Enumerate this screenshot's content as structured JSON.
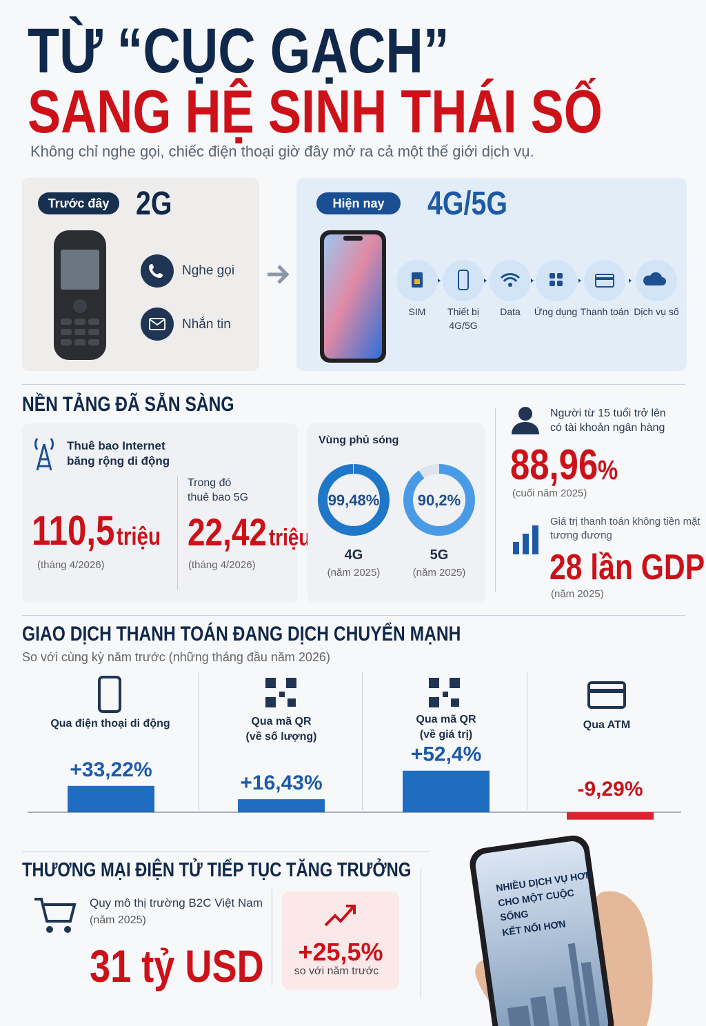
{
  "header": {
    "title_line1": "TỪ “CỤC GẠCH”",
    "title_line2": "SANG HỆ SINH THÁI SỐ",
    "subtitle": "Không chỉ nghe gọi, chiếc điện thoại giờ đây mở ra cả một thế giới dịch vụ."
  },
  "before": {
    "badge": "Trước đây",
    "tech": "2G",
    "features": [
      "Nghe gọi",
      "Nhắn tin"
    ]
  },
  "now": {
    "badge": "Hiện nay",
    "tech": "4G/5G",
    "steps": [
      "SIM",
      "Thiết bị\n4G/5G",
      "Data",
      "Ứng dụng",
      "Thanh toán",
      "Dịch vụ số"
    ]
  },
  "platform": {
    "title": "NỀN TẢNG ĐÃ SẴN SÀNG",
    "broadband": {
      "label": "Thuê bao Internet\nbăng rộng di động",
      "value": "110,5",
      "unit": "triệu",
      "note": "(tháng 4/2026)",
      "sub_label": "Trong đó\nthuê bao 5G",
      "sub_value": "22,42",
      "sub_unit": "triệu",
      "sub_note": "(tháng 4/2026)"
    },
    "coverage": {
      "title": "Vùng phủ sóng",
      "items": [
        {
          "value": 99.48,
          "value_label": "99,48%",
          "name": "4G",
          "note": "(năm 2025)"
        },
        {
          "value": 90.2,
          "value_label": "90,2%",
          "name": "5G",
          "note": "(năm 2025)"
        }
      ]
    },
    "bank": {
      "label": "Người từ 15 tuổi trở lên\ncó tài khoản ngân hàng",
      "value": "88,96",
      "unit": "%",
      "note": "(cuối năm 2025)"
    },
    "cashless": {
      "label": "Giá trị thanh toán không tiền mặt\ntương đương",
      "value": "28 lần GDP",
      "note": "(năm 2025)"
    }
  },
  "payments": {
    "title": "GIAO DỊCH THANH TOÁN ĐANG DỊCH CHUYỂN MẠNH",
    "subtitle": "So với cùng kỳ năm trước (những tháng đầu năm 2026)",
    "items": [
      {
        "label": "Qua điện thoại di động",
        "value": 33.22,
        "value_label": "+33,22%"
      },
      {
        "label": "Qua mã QR\n(về số lượng)",
        "value": 16.43,
        "value_label": "+16,43%"
      },
      {
        "label": "Qua mã QR\n(về giá trị)",
        "value": 52.4,
        "value_label": "+52,4%"
      },
      {
        "label": "Qua ATM",
        "value": -9.29,
        "value_label": "-9,29%"
      }
    ]
  },
  "ecommerce": {
    "title": "THƯƠNG MẠI ĐIỆN TỬ TIẾP TỤC TĂNG TRƯỞNG",
    "label": "Quy mô thị trường B2C Việt Nam",
    "note": "(năm 2025)",
    "value": "31 tỷ USD",
    "growth": "+25,5%",
    "growth_note": "so với năm trước",
    "phone_text": "NHIỀU DỊCH VỤ HƠN\nCHO MỘT CUỘC SỐNG\nKẾT NỐI HƠN"
  }
}
